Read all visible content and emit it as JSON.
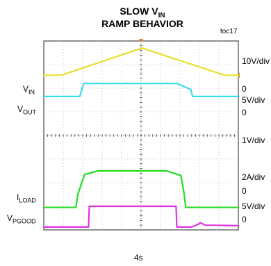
{
  "title": {
    "line1_main": "SLOW V",
    "line1_sub": "IN",
    "line2": "RAMP BEHAVIOR"
  },
  "figure_id": "toc17",
  "timebase": "4s",
  "left_labels": {
    "vin": {
      "main": "V",
      "sub": "IN"
    },
    "vout": {
      "main": "V",
      "sub": "OUT"
    },
    "iload": {
      "main": "I",
      "sub": "LOAD"
    },
    "vpgood": {
      "main": "V",
      "sub": "PGOOD"
    }
  },
  "right_labels": {
    "vin_scale": "10V/div",
    "vin_zero": "0",
    "vout_scale": "5V/div",
    "vout_zero": "0",
    "ch3_scale": "1V/div",
    "iload_scale": "2A/div",
    "iload_zero": "0",
    "vpgood_scale": "5V/div",
    "vpgood_zero": "0"
  },
  "colors": {
    "vin": "#e6e22b",
    "vout": "#33ddee",
    "ch3": "#22dd22",
    "vpgood": "#dd33dd",
    "grid": "#999999",
    "trigger": "#e57a1e"
  },
  "chart_data": {
    "type": "line",
    "x_divisions": 10,
    "y_divisions": 8,
    "xlim": [
      0,
      10
    ],
    "ylim": [
      0,
      8
    ],
    "x_unit": "div (4s/div)",
    "grid": true,
    "series": [
      {
        "name": "V_IN",
        "color": "#e6e22b",
        "x": [
          0,
          0.9,
          5.05,
          9.3,
          10
        ],
        "y": [
          6.55,
          6.55,
          7.7,
          6.55,
          6.55
        ]
      },
      {
        "name": "V_OUT",
        "color": "#33ddee",
        "x": [
          0,
          1.85,
          2.05,
          6.85,
          7.55,
          7.65,
          10
        ],
        "y": [
          5.65,
          5.65,
          6.2,
          6.2,
          5.95,
          5.65,
          5.65
        ]
      },
      {
        "name": "1V/div",
        "color": "#22dd22",
        "x": [
          0,
          1.65,
          1.75,
          2.1,
          2.8,
          6.3,
          7.05,
          7.2,
          7.3,
          10
        ],
        "y": [
          0.95,
          0.95,
          1.5,
          2.35,
          2.5,
          2.5,
          2.3,
          1.6,
          0.95,
          0.95
        ]
      },
      {
        "name": "V_PGOOD",
        "color": "#dd33dd",
        "x": [
          0,
          2.3,
          2.34,
          6.8,
          6.84,
          7.6,
          7.9,
          8.05,
          8.3,
          10
        ],
        "y": [
          0.12,
          0.12,
          1.0,
          1.0,
          0.12,
          0.12,
          0.22,
          0.3,
          0.2,
          0.18
        ]
      }
    ]
  }
}
